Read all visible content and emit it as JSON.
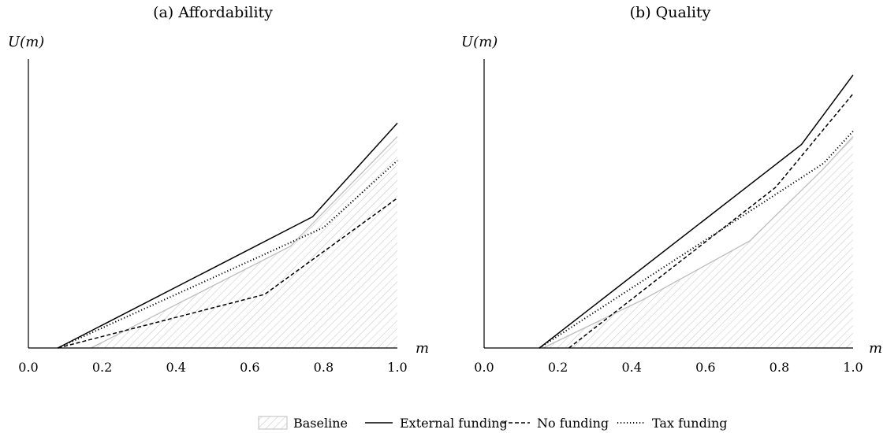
{
  "legend": {
    "items": [
      {
        "label": "Baseline",
        "style": "hatch"
      },
      {
        "label": "External funding",
        "style": "solid"
      },
      {
        "label": "No funding",
        "style": "dashed"
      },
      {
        "label": "Tax funding",
        "style": "dotted"
      }
    ]
  },
  "colors": {
    "baseline_edge": "#bdbdbd",
    "baseline_hatch": "#c6c6c6",
    "lines": "#000000"
  },
  "chart_data": [
    {
      "type": "line",
      "title": "(a) Affordability",
      "ylabel": "U(m)",
      "xlabel": "m",
      "xlim": [
        0,
        1
      ],
      "ylim": [
        0,
        1
      ],
      "xticks": [
        "0.0",
        "0.2",
        "0.4",
        "0.6",
        "0.8",
        "1.0"
      ],
      "yticks": [],
      "grid": false,
      "series": [
        {
          "name": "Baseline",
          "style": "hatch",
          "x": [
            0.17,
            0.71,
            1.0
          ],
          "y": [
            0,
            0.38,
            0.79
          ]
        },
        {
          "name": "External funding",
          "style": "solid",
          "x": [
            0.08,
            0.77,
            1.0
          ],
          "y": [
            0,
            0.49,
            0.84
          ]
        },
        {
          "name": "No funding",
          "style": "dashed",
          "x": [
            0.08,
            0.64,
            1.0
          ],
          "y": [
            0,
            0.2,
            0.56
          ]
        },
        {
          "name": "Tax funding",
          "style": "dotted",
          "x": [
            0.08,
            0.8,
            1.0
          ],
          "y": [
            0,
            0.45,
            0.7
          ]
        }
      ]
    },
    {
      "type": "line",
      "title": "(b) Quality",
      "ylabel": "U(m)",
      "xlabel": "m",
      "xlim": [
        0,
        1
      ],
      "ylim": [
        0,
        1
      ],
      "xticks": [
        "0.0",
        "0.2",
        "0.4",
        "0.6",
        "0.8",
        "1.0"
      ],
      "yticks": [],
      "grid": false,
      "series": [
        {
          "name": "Baseline",
          "style": "hatch",
          "x": [
            0.16,
            0.43,
            0.72,
            0.92,
            1.0
          ],
          "y": [
            0,
            0.18,
            0.4,
            0.67,
            0.79
          ]
        },
        {
          "name": "External funding",
          "style": "solid",
          "x": [
            0.15,
            0.86,
            1.0
          ],
          "y": [
            0,
            0.76,
            1.02
          ]
        },
        {
          "name": "No funding",
          "style": "dashed",
          "x": [
            0.23,
            0.79,
            1.0
          ],
          "y": [
            0,
            0.6,
            0.95
          ]
        },
        {
          "name": "Tax funding",
          "style": "dotted",
          "x": [
            0.15,
            0.92,
            1.0
          ],
          "y": [
            0,
            0.69,
            0.81
          ]
        }
      ]
    }
  ]
}
